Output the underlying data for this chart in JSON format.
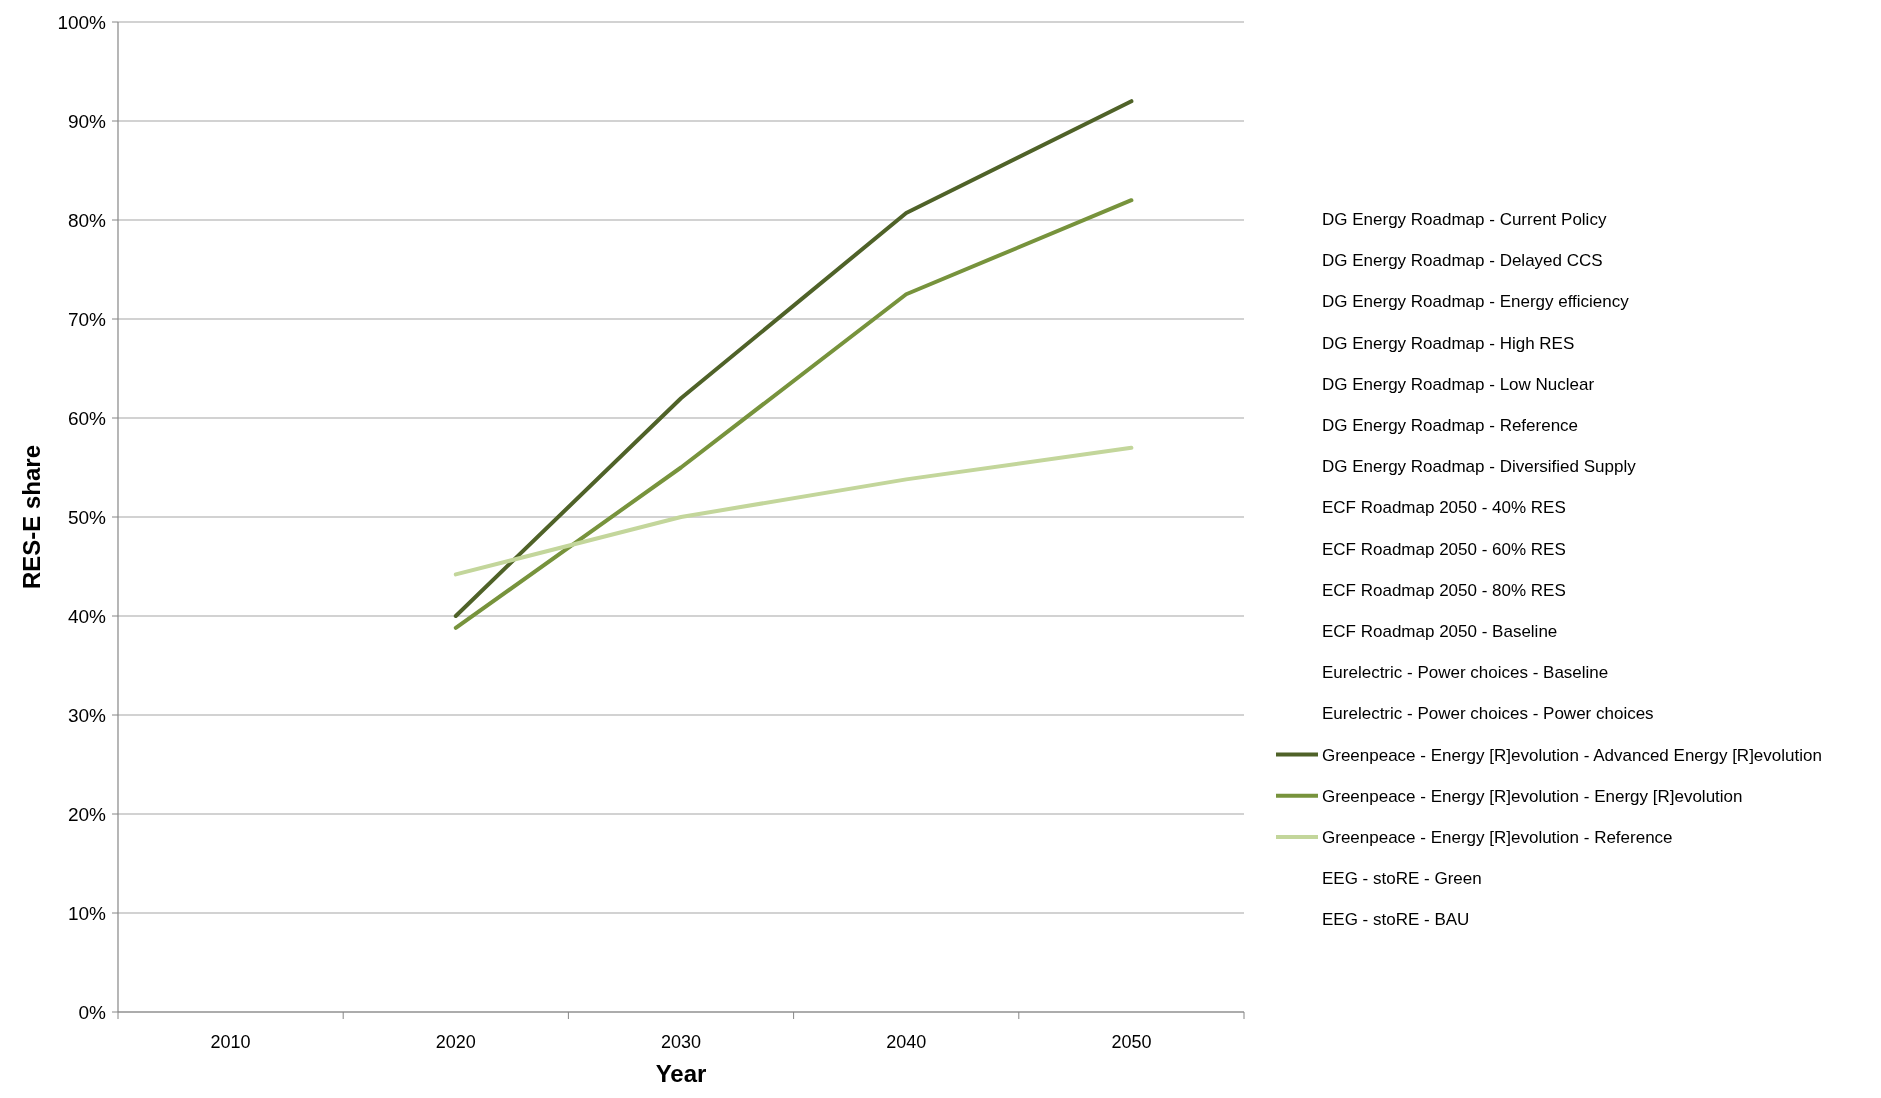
{
  "chart_data": {
    "type": "line",
    "xlabel": "Year",
    "ylabel": "RES-E share",
    "categories": [
      "2010",
      "2020",
      "2030",
      "2040",
      "2050"
    ],
    "ylim": [
      0,
      100
    ],
    "yticks": [
      {
        "value": 0,
        "label": "0%"
      },
      {
        "value": 10,
        "label": "10%"
      },
      {
        "value": 20,
        "label": "20%"
      },
      {
        "value": 30,
        "label": "30%"
      },
      {
        "value": 40,
        "label": "40%"
      },
      {
        "value": 50,
        "label": "50%"
      },
      {
        "value": 60,
        "label": "60%"
      },
      {
        "value": 70,
        "label": "70%"
      },
      {
        "value": 80,
        "label": "80%"
      },
      {
        "value": 90,
        "label": "90%"
      },
      {
        "value": 100,
        "label": "100%"
      }
    ],
    "grid": "y",
    "legend": "right",
    "marker": "none",
    "line_style": "solid",
    "series": [
      {
        "name": "DG Energy Roadmap - Current Policy",
        "values": [
          null,
          null,
          null,
          null,
          null
        ]
      },
      {
        "name": "DG Energy Roadmap - Delayed CCS",
        "values": [
          null,
          null,
          null,
          null,
          null
        ]
      },
      {
        "name": "DG Energy Roadmap - Energy efficiency",
        "values": [
          null,
          null,
          null,
          null,
          null
        ]
      },
      {
        "name": "DG Energy Roadmap - High RES",
        "values": [
          null,
          null,
          null,
          null,
          null
        ]
      },
      {
        "name": "DG Energy Roadmap - Low Nuclear",
        "values": [
          null,
          null,
          null,
          null,
          null
        ]
      },
      {
        "name": "DG Energy Roadmap - Reference",
        "values": [
          null,
          null,
          null,
          null,
          null
        ]
      },
      {
        "name": "DG Energy Roadmap - Diversified Supply",
        "values": [
          null,
          null,
          null,
          null,
          null
        ]
      },
      {
        "name": "ECF Roadmap 2050 - 40% RES",
        "values": [
          null,
          null,
          null,
          null,
          null
        ]
      },
      {
        "name": "ECF Roadmap 2050 - 60% RES",
        "values": [
          null,
          null,
          null,
          null,
          null
        ]
      },
      {
        "name": "ECF Roadmap 2050 - 80% RES",
        "values": [
          null,
          null,
          null,
          null,
          null
        ]
      },
      {
        "name": "ECF Roadmap 2050 - Baseline",
        "values": [
          null,
          null,
          null,
          null,
          null
        ]
      },
      {
        "name": "Eurelectric - Power choices - Baseline",
        "values": [
          null,
          null,
          null,
          null,
          null
        ]
      },
      {
        "name": "Eurelectric - Power choices - Power choices",
        "values": [
          null,
          null,
          null,
          null,
          null
        ]
      },
      {
        "name": "Greenpeace - Energy [R]evolution - Advanced Energy [R]evolution",
        "color": "#4f6228",
        "values": [
          null,
          40,
          62,
          80.7,
          92
        ]
      },
      {
        "name": "Greenpeace - Energy [R]evolution - Energy [R]evolution",
        "color": "#77933c",
        "values": [
          null,
          38.8,
          55,
          72.5,
          82
        ]
      },
      {
        "name": "Greenpeace - Energy [R]evolution - Reference",
        "color": "#c3d69b",
        "values": [
          null,
          44.2,
          50,
          53.8,
          57
        ]
      },
      {
        "name": "EEG - stoRE - Green",
        "values": [
          null,
          null,
          null,
          null,
          null
        ]
      },
      {
        "name": "EEG - stoRE - BAU",
        "values": [
          null,
          null,
          null,
          null,
          null
        ]
      }
    ]
  }
}
